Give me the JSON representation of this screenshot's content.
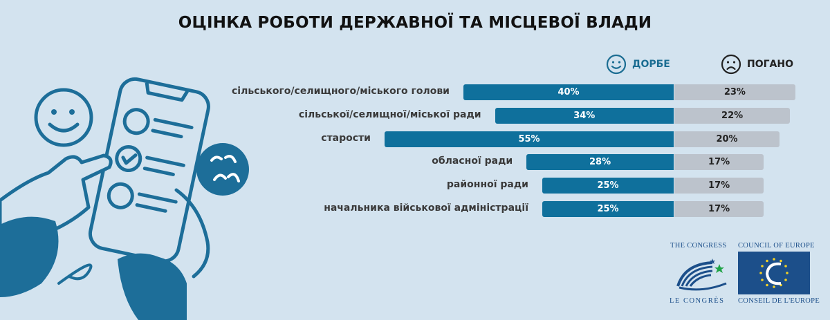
{
  "title": "ОЦІНКА РОБОТИ ДЕРЖАВНОЇ ТА МІСЦЕВОЇ ВЛАДИ",
  "legend": {
    "good": "ДОРБЕ",
    "bad": "ПОГАНО"
  },
  "colors": {
    "good": "#0f709c",
    "bad": "#bcc3cc",
    "background": "#d3e3ef",
    "illustration": "#1d6e99"
  },
  "chart_data": {
    "type": "bar",
    "orientation": "horizontal",
    "stacked": "diverging",
    "categories": [
      "сільського/селищного/міського голови",
      "сільської/селищної/міської ради",
      "старости",
      "обласної ради",
      "районної ради",
      "начальника військової адміністрації"
    ],
    "series": [
      {
        "name": "ДОРБЕ",
        "values": [
          40,
          34,
          55,
          28,
          25,
          25
        ],
        "labels": [
          "40%",
          "34%",
          "55%",
          "28%",
          "25%",
          "25%"
        ]
      },
      {
        "name": "ПОГАНО",
        "values": [
          23,
          22,
          20,
          17,
          17,
          17
        ],
        "labels": [
          "23%",
          "22%",
          "20%",
          "17%",
          "17%",
          "17%"
        ]
      }
    ],
    "legend": "top-right"
  },
  "logos": {
    "congress_top": "THE CONGRESS",
    "congress_bottom": "LE CONGRÈS",
    "coe_top": "COUNCIL OF EUROPE",
    "coe_bottom": "CONSEIL DE L'EUROPE"
  }
}
